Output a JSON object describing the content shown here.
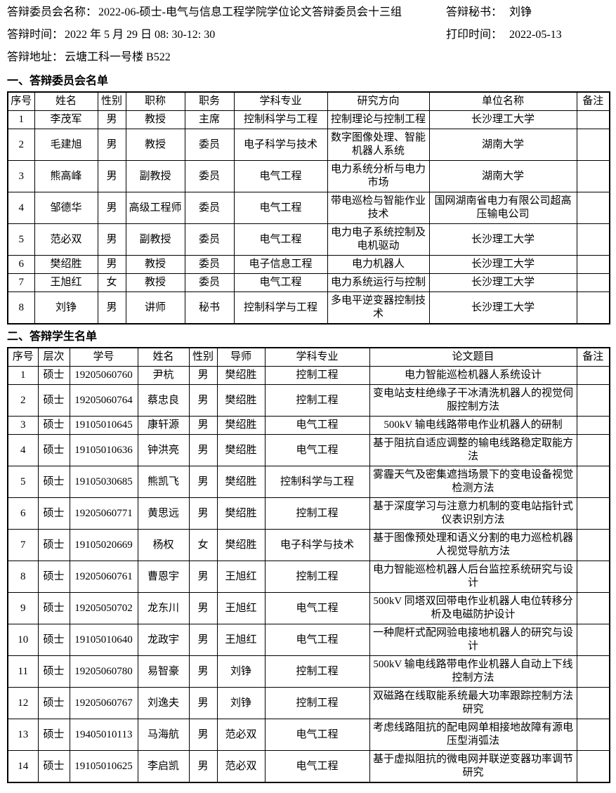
{
  "header": {
    "committee_name_label": "答辩委员会名称：",
    "committee_name": "2022-06-硕士-电气与信息工程学院学位论文答辩委员会十三组",
    "secretary_label": "答辩秘书：",
    "secretary": "刘铮",
    "time_label": "答辩时间：",
    "time": "2022 年 5 月 29 日 08: 30-12: 30",
    "print_time_label": "打印时间：",
    "print_time": "2022-05-13",
    "address_label": "答辩地址：",
    "address": "云塘工科一号楼 B522"
  },
  "committee_section": {
    "title": "一、答辩委员会名单",
    "columns": [
      "序号",
      "姓名",
      "性别",
      "职称",
      "职务",
      "学科专业",
      "研究方向",
      "单位名称",
      "备注"
    ],
    "rows": [
      [
        "1",
        "李茂军",
        "男",
        "教授",
        "主席",
        "控制科学与工程",
        "控制理论与控制工程",
        "长沙理工大学",
        ""
      ],
      [
        "2",
        "毛建旭",
        "男",
        "教授",
        "委员",
        "电子科学与技术",
        "数字图像处理、智能机器人系统",
        "湖南大学",
        ""
      ],
      [
        "3",
        "熊高峰",
        "男",
        "副教授",
        "委员",
        "电气工程",
        "电力系统分析与电力市场",
        "湖南大学",
        ""
      ],
      [
        "4",
        "邹德华",
        "男",
        "高级工程师",
        "委员",
        "电气工程",
        "带电巡检与智能作业技术",
        "国网湖南省电力有限公司超高压输电公司",
        ""
      ],
      [
        "5",
        "范必双",
        "男",
        "副教授",
        "委员",
        "电气工程",
        "电力电子系统控制及电机驱动",
        "长沙理工大学",
        ""
      ],
      [
        "6",
        "樊绍胜",
        "男",
        "教授",
        "委员",
        "电子信息工程",
        "电力机器人",
        "长沙理工大学",
        ""
      ],
      [
        "7",
        "王旭红",
        "女",
        "教授",
        "委员",
        "电气工程",
        "电力系统运行与控制",
        "长沙理工大学",
        ""
      ],
      [
        "8",
        "刘铮",
        "男",
        "讲师",
        "秘书",
        "控制科学与工程",
        "多电平逆变器控制技术",
        "长沙理工大学",
        ""
      ]
    ]
  },
  "students_section": {
    "title": "二、答辩学生名单",
    "columns": [
      "序号",
      "层次",
      "学号",
      "姓名",
      "性别",
      "导师",
      "学科专业",
      "论文题目",
      "备注"
    ],
    "rows": [
      [
        "1",
        "硕士",
        "19205060760",
        "尹杭",
        "男",
        "樊绍胜",
        "控制工程",
        "电力智能巡检机器人系统设计",
        ""
      ],
      [
        "2",
        "硕士",
        "19205060764",
        "蔡忠良",
        "男",
        "樊绍胜",
        "控制工程",
        "变电站支柱绝缘子干冰清洗机器人的视觉伺服控制方法",
        ""
      ],
      [
        "3",
        "硕士",
        "19105010645",
        "康轩源",
        "男",
        "樊绍胜",
        "电气工程",
        "500kV 输电线路带电作业机器人的研制",
        ""
      ],
      [
        "4",
        "硕士",
        "19105010636",
        "钟洪亮",
        "男",
        "樊绍胜",
        "电气工程",
        "基于阻抗自适应调整的输电线路稳定取能方法",
        ""
      ],
      [
        "5",
        "硕士",
        "19105030685",
        "熊凯飞",
        "男",
        "樊绍胜",
        "控制科学与工程",
        "雾霾天气及密集遮挡场景下的变电设备视觉检测方法",
        ""
      ],
      [
        "6",
        "硕士",
        "19205060771",
        "黄思远",
        "男",
        "樊绍胜",
        "控制工程",
        "基于深度学习与注意力机制的变电站指针式仪表识别方法",
        ""
      ],
      [
        "7",
        "硕士",
        "19105020669",
        "杨权",
        "女",
        "樊绍胜",
        "电子科学与技术",
        "基于图像预处理和语义分割的电力巡检机器人视觉导航方法",
        ""
      ],
      [
        "8",
        "硕士",
        "19205060761",
        "曹恩宇",
        "男",
        "王旭红",
        "控制工程",
        "电力智能巡检机器人后台监控系统研究与设计",
        ""
      ],
      [
        "9",
        "硕士",
        "19205050702",
        "龙东川",
        "男",
        "王旭红",
        "电气工程",
        "500kV 同塔双回带电作业机器人电位转移分析及电磁防护设计",
        ""
      ],
      [
        "10",
        "硕士",
        "19105010640",
        "龙政宇",
        "男",
        "王旭红",
        "电气工程",
        "一种爬杆式配网验电接地机器人的研究与设计",
        ""
      ],
      [
        "11",
        "硕士",
        "19205060780",
        "易智豪",
        "男",
        "刘铮",
        "控制工程",
        "500kV 输电线路带电作业机器人自动上下线控制方法",
        ""
      ],
      [
        "12",
        "硕士",
        "19205060767",
        "刘逸夫",
        "男",
        "刘铮",
        "控制工程",
        "双磁路在线取能系统最大功率跟踪控制方法研究",
        ""
      ],
      [
        "13",
        "硕士",
        "19405010113",
        "马海航",
        "男",
        "范必双",
        "电气工程",
        "考虑线路阻抗的配电网单相接地故障有源电压型消弧法",
        ""
      ],
      [
        "14",
        "硕士",
        "19105010625",
        "李启凯",
        "男",
        "范必双",
        "电气工程",
        "基于虚拟阻抗的微电网并联逆变器功率调节研究",
        ""
      ]
    ]
  }
}
